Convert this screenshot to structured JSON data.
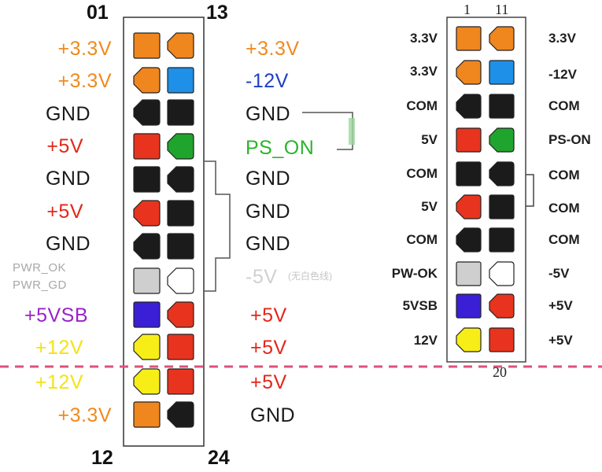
{
  "left_connector": {
    "pin_numbers": {
      "top_left": "01",
      "top_right": "13",
      "bottom_left": "12",
      "bottom_right": "24"
    },
    "left_labels": [
      {
        "text": "+3.3V",
        "color": "#f08a1e"
      },
      {
        "text": "+3.3V",
        "color": "#f08a1e"
      },
      {
        "text": "GND",
        "color": "#1a1a1a"
      },
      {
        "text": "+5V",
        "color": "#e3261a"
      },
      {
        "text": "GND",
        "color": "#1a1a1a"
      },
      {
        "text": "+5V",
        "color": "#e3261a"
      },
      {
        "text": "GND",
        "color": "#1a1a1a"
      },
      {
        "text": "PWR_OK",
        "color": "#a8a8a8"
      },
      {
        "text": "+5VSB",
        "color": "#9b22c9"
      },
      {
        "text": "+12V",
        "color": "#f2e414"
      },
      {
        "text": "+12V",
        "color": "#f2e414"
      },
      {
        "text": "+3.3V",
        "color": "#f08a1e"
      }
    ],
    "pwr_gd": "PWR_GD",
    "right_labels": [
      {
        "text": "+3.3V",
        "color": "#f08a1e"
      },
      {
        "text": "-12V",
        "color": "#1c3fc4"
      },
      {
        "text": "GND",
        "color": "#1a1a1a"
      },
      {
        "text": "PS_ON",
        "color": "#2bb52b"
      },
      {
        "text": "GND",
        "color": "#1a1a1a"
      },
      {
        "text": "GND",
        "color": "#1a1a1a"
      },
      {
        "text": "GND",
        "color": "#1a1a1a"
      },
      {
        "text": "-5V",
        "color": "#d0d0d0"
      },
      {
        "text": "+5V",
        "color": "#e3261a"
      },
      {
        "text": "+5V",
        "color": "#e3261a"
      },
      {
        "text": "+5V",
        "color": "#e3261a"
      },
      {
        "text": "GND",
        "color": "#1a1a1a"
      }
    ],
    "minus5v_note": "(无白色线)"
  },
  "right_connector": {
    "pin_numbers": {
      "top_left": "1",
      "top_right": "11",
      "bottom": "20"
    },
    "left_labels": [
      "3.3V",
      "3.3V",
      "COM",
      "5V",
      "COM",
      "5V",
      "COM",
      "PW-OK",
      "5VSB",
      "12V"
    ],
    "right_labels": [
      "3.3V",
      "-12V",
      "COM",
      "PS-ON",
      "COM",
      "COM",
      "COM",
      "-5V",
      "+5V",
      "+5V"
    ]
  },
  "wire_colors": {
    "orange": "#f0861e",
    "blue": "#1e90e8",
    "black": "#1b1b1b",
    "red": "#e8341e",
    "green": "#1fa52e",
    "gray": "#cfcfcf",
    "white": "#ffffff",
    "purple": "#3a1fd6",
    "yellow": "#f7ee18",
    "divider": "#e0507a"
  }
}
